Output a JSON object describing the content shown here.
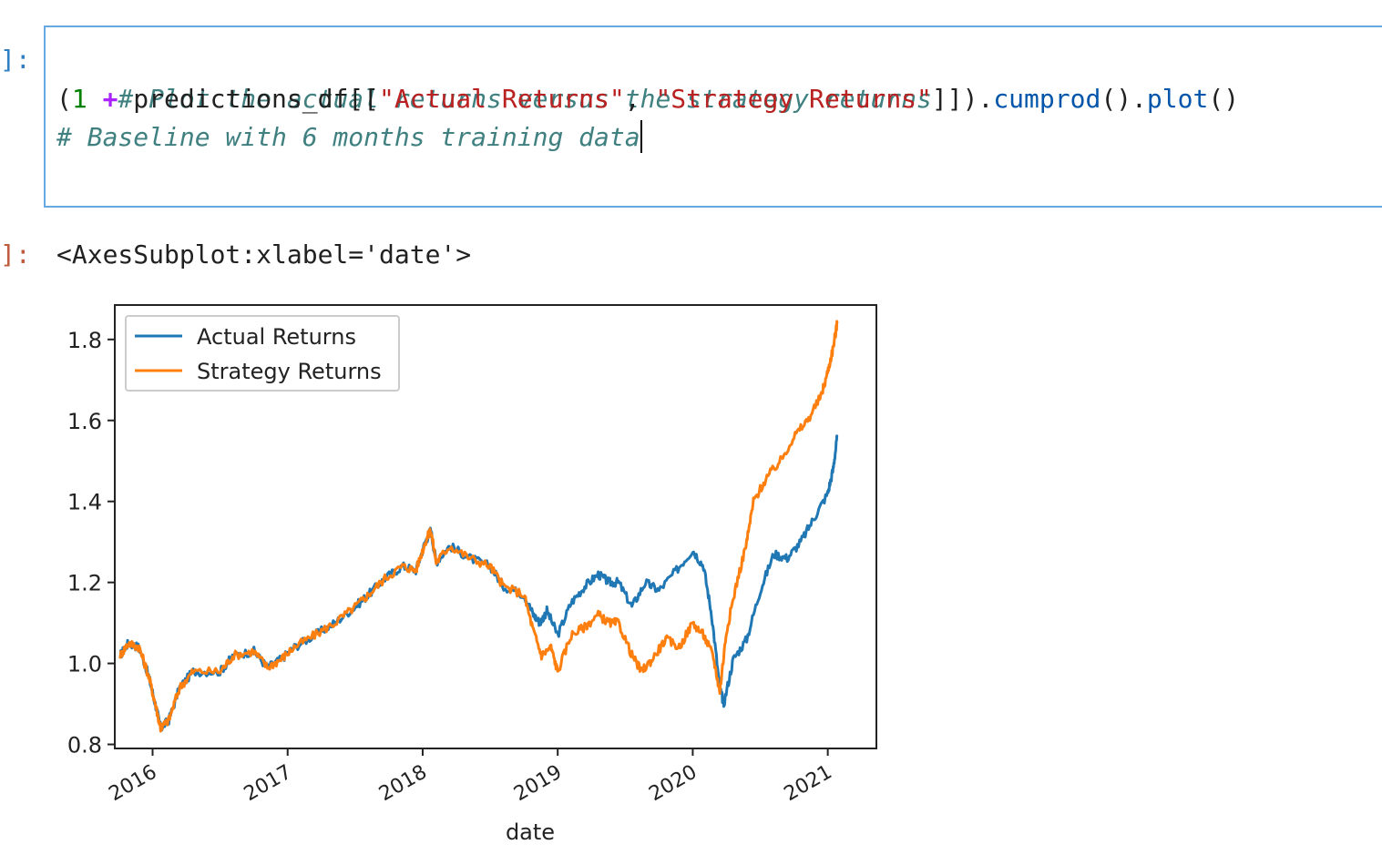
{
  "input_cell": {
    "prompt": "]:",
    "lines": [
      {
        "comment": "# Plot the actual returns versus the strategy returns"
      },
      {
        "open_paren": "(",
        "num": "1",
        "op": "+",
        "var": " predictions_df[[",
        "str1": "\"Actual Returns\"",
        "comma": ", ",
        "str2": "\"Strategy Returns\"",
        "close": "]]).",
        "fn1": "cumprod",
        "parens1": "().",
        "fn2": "plot",
        "parens2": "()"
      },
      {
        "comment": "# Baseline with 6 months training data"
      }
    ]
  },
  "output_cell": {
    "prompt": "]:",
    "text": "<AxesSubplot:xlabel='date'>"
  },
  "colors": {
    "actual": "#1f77b4",
    "strategy": "#ff7f0e",
    "cell_border": "#66a9e3"
  },
  "chart_data": {
    "type": "line",
    "xlabel": "date",
    "ylabel": "",
    "title": "",
    "xlim": [
      2015.72,
      2021.36
    ],
    "ylim": [
      0.79,
      1.885
    ],
    "xticks": [
      2016,
      2017,
      2018,
      2019,
      2020,
      2021
    ],
    "xtick_labels": [
      "2016",
      "2017",
      "2018",
      "2019",
      "2020",
      "2021"
    ],
    "yticks": [
      0.8,
      1.0,
      1.2,
      1.4,
      1.6,
      1.8
    ],
    "ytick_labels": [
      "0.8",
      "1.0",
      "1.2",
      "1.4",
      "1.6",
      "1.8"
    ],
    "legend": "upper-left",
    "grid": false,
    "series": [
      {
        "name": "Actual Returns",
        "color": "#1f77b4",
        "points": [
          [
            2015.76,
            1.02
          ],
          [
            2015.82,
            1.05
          ],
          [
            2015.9,
            1.04
          ],
          [
            2015.97,
            0.97
          ],
          [
            2016.02,
            0.9
          ],
          [
            2016.06,
            0.84
          ],
          [
            2016.12,
            0.86
          ],
          [
            2016.2,
            0.94
          ],
          [
            2016.3,
            0.98
          ],
          [
            2016.5,
            0.98
          ],
          [
            2016.6,
            1.02
          ],
          [
            2016.75,
            1.03
          ],
          [
            2016.85,
            0.99
          ],
          [
            2016.95,
            1.01
          ],
          [
            2017.05,
            1.04
          ],
          [
            2017.2,
            1.07
          ],
          [
            2017.35,
            1.1
          ],
          [
            2017.5,
            1.14
          ],
          [
            2017.6,
            1.17
          ],
          [
            2017.72,
            1.21
          ],
          [
            2017.85,
            1.24
          ],
          [
            2017.95,
            1.23
          ],
          [
            2018.02,
            1.3
          ],
          [
            2018.06,
            1.33
          ],
          [
            2018.1,
            1.25
          ],
          [
            2018.2,
            1.29
          ],
          [
            2018.35,
            1.26
          ],
          [
            2018.5,
            1.24
          ],
          [
            2018.6,
            1.19
          ],
          [
            2018.75,
            1.17
          ],
          [
            2018.82,
            1.12
          ],
          [
            2018.87,
            1.1
          ],
          [
            2018.92,
            1.13
          ],
          [
            2019.0,
            1.07
          ],
          [
            2019.1,
            1.15
          ],
          [
            2019.2,
            1.19
          ],
          [
            2019.3,
            1.22
          ],
          [
            2019.38,
            1.2
          ],
          [
            2019.45,
            1.2
          ],
          [
            2019.55,
            1.14
          ],
          [
            2019.65,
            1.2
          ],
          [
            2019.75,
            1.18
          ],
          [
            2019.88,
            1.23
          ],
          [
            2020.0,
            1.28
          ],
          [
            2020.08,
            1.24
          ],
          [
            2020.14,
            1.12
          ],
          [
            2020.2,
            0.94
          ],
          [
            2020.23,
            0.9
          ],
          [
            2020.3,
            1.01
          ],
          [
            2020.4,
            1.06
          ],
          [
            2020.5,
            1.18
          ],
          [
            2020.6,
            1.27
          ],
          [
            2020.7,
            1.26
          ],
          [
            2020.8,
            1.3
          ],
          [
            2020.9,
            1.36
          ],
          [
            2021.0,
            1.42
          ],
          [
            2021.04,
            1.48
          ],
          [
            2021.07,
            1.56
          ]
        ]
      },
      {
        "name": "Strategy Returns",
        "color": "#ff7f0e",
        "points": [
          [
            2015.76,
            1.02
          ],
          [
            2015.82,
            1.05
          ],
          [
            2015.9,
            1.04
          ],
          [
            2015.97,
            0.97
          ],
          [
            2016.02,
            0.9
          ],
          [
            2016.06,
            0.84
          ],
          [
            2016.12,
            0.86
          ],
          [
            2016.2,
            0.94
          ],
          [
            2016.3,
            0.98
          ],
          [
            2016.5,
            0.98
          ],
          [
            2016.6,
            1.02
          ],
          [
            2016.75,
            1.03
          ],
          [
            2016.85,
            0.99
          ],
          [
            2016.95,
            1.01
          ],
          [
            2017.05,
            1.04
          ],
          [
            2017.2,
            1.07
          ],
          [
            2017.35,
            1.1
          ],
          [
            2017.5,
            1.14
          ],
          [
            2017.6,
            1.17
          ],
          [
            2017.72,
            1.21
          ],
          [
            2017.85,
            1.24
          ],
          [
            2017.95,
            1.23
          ],
          [
            2018.02,
            1.3
          ],
          [
            2018.06,
            1.33
          ],
          [
            2018.1,
            1.25
          ],
          [
            2018.2,
            1.29
          ],
          [
            2018.35,
            1.26
          ],
          [
            2018.5,
            1.24
          ],
          [
            2018.6,
            1.19
          ],
          [
            2018.75,
            1.17
          ],
          [
            2018.82,
            1.08
          ],
          [
            2018.88,
            1.02
          ],
          [
            2018.95,
            1.04
          ],
          [
            2019.0,
            0.98
          ],
          [
            2019.1,
            1.07
          ],
          [
            2019.2,
            1.09
          ],
          [
            2019.3,
            1.12
          ],
          [
            2019.38,
            1.1
          ],
          [
            2019.45,
            1.1
          ],
          [
            2019.55,
            1.02
          ],
          [
            2019.62,
            0.98
          ],
          [
            2019.7,
            1.01
          ],
          [
            2019.8,
            1.06
          ],
          [
            2019.9,
            1.04
          ],
          [
            2020.0,
            1.1
          ],
          [
            2020.08,
            1.07
          ],
          [
            2020.15,
            1.02
          ],
          [
            2020.2,
            0.93
          ],
          [
            2020.25,
            1.08
          ],
          [
            2020.32,
            1.19
          ],
          [
            2020.4,
            1.3
          ],
          [
            2020.45,
            1.4
          ],
          [
            2020.55,
            1.46
          ],
          [
            2020.65,
            1.5
          ],
          [
            2020.75,
            1.56
          ],
          [
            2020.85,
            1.6
          ],
          [
            2020.95,
            1.66
          ],
          [
            2021.0,
            1.72
          ],
          [
            2021.04,
            1.78
          ],
          [
            2021.07,
            1.84
          ]
        ]
      }
    ]
  }
}
